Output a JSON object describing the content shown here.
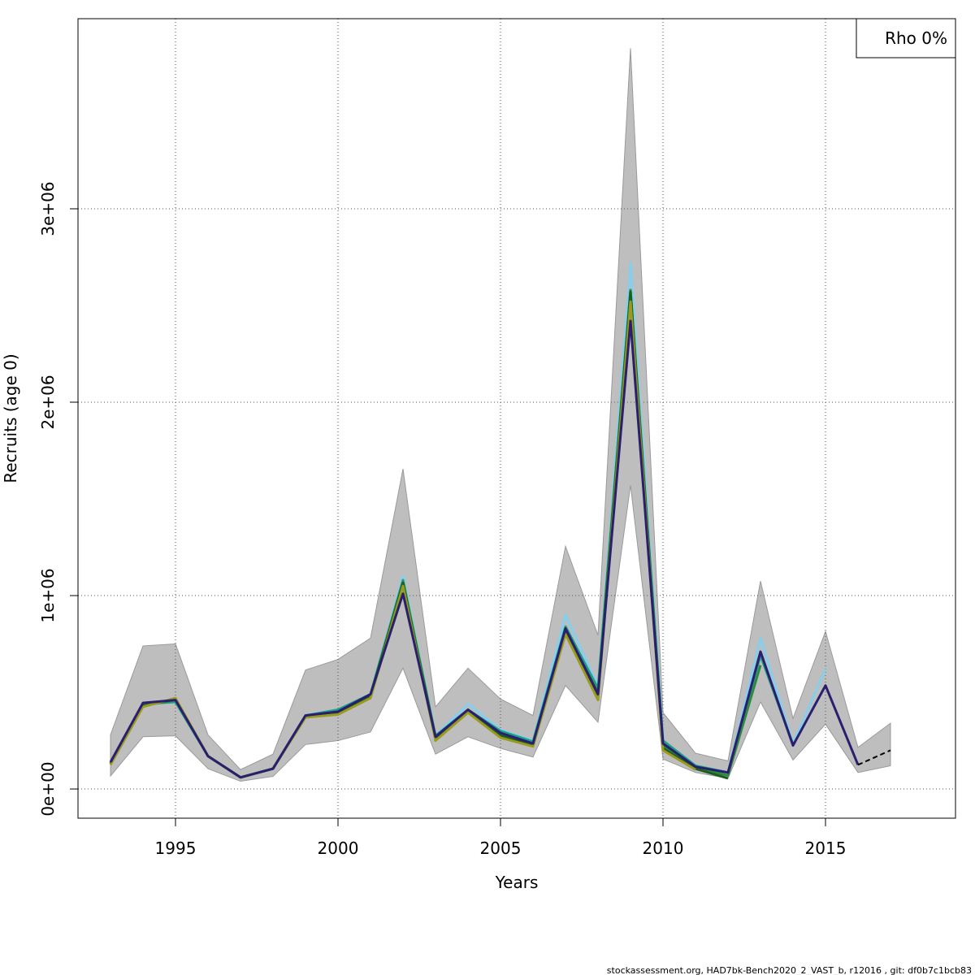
{
  "chart_data": {
    "type": "line",
    "xlabel": "Years",
    "ylabel": "Recruits (age 0)",
    "annotation": "Rho 0%",
    "footer": "stockassessment.org, HAD7bk-Bench2020_2_VAST_b, r12016 , git: df0b7c1bcb83",
    "x": [
      1993,
      1994,
      1995,
      1996,
      1997,
      1998,
      1999,
      2000,
      2001,
      2002,
      2003,
      2004,
      2005,
      2006,
      2007,
      2008,
      2009,
      2010,
      2011,
      2012,
      2013,
      2014,
      2015,
      2016,
      2017
    ],
    "xlim": [
      1992,
      2019
    ],
    "xticks": [
      1995,
      2000,
      2005,
      2010,
      2015
    ],
    "ylim": [
      -151000,
      3983000
    ],
    "yticks": [
      {
        "value": 0,
        "label": "0e+00"
      },
      {
        "value": 1000000,
        "label": "1e+06"
      },
      {
        "value": 2000000,
        "label": "2e+06"
      },
      {
        "value": 3000000,
        "label": "3e+06"
      }
    ],
    "grid": true,
    "band": {
      "color": "#bebebe",
      "upper": [
        280000,
        740000,
        750000,
        280000,
        100000,
        180000,
        615000,
        670000,
        780000,
        1655000,
        425000,
        625000,
        465000,
        380000,
        1255000,
        795000,
        3830000,
        395000,
        185000,
        145000,
        1075000,
        365000,
        815000,
        215000,
        340000
      ],
      "lower": [
        67000,
        270000,
        275000,
        105000,
        40000,
        65000,
        230000,
        250000,
        295000,
        625000,
        180000,
        270000,
        210000,
        165000,
        535000,
        345000,
        1570000,
        155000,
        85000,
        55000,
        450000,
        150000,
        335000,
        85000,
        120000
      ]
    },
    "series": [
      {
        "color": "#87ceeb",
        "values": [
          135000,
          440000,
          455000,
          170000,
          60000,
          105000,
          380000,
          410000,
          490000,
          1100000,
          275000,
          440000,
          305000,
          250000,
          900000,
          530000,
          2720000,
          250000,
          120000,
          85000,
          780000,
          235000,
          620000,
          null,
          null
        ]
      },
      {
        "color": "#1f9e89",
        "values": [
          135000,
          440000,
          450000,
          170000,
          60000,
          105000,
          380000,
          410000,
          490000,
          1080000,
          275000,
          410000,
          300000,
          245000,
          840000,
          520000,
          2580000,
          250000,
          120000,
          85000,
          690000,
          230000,
          null,
          null,
          null
        ]
      },
      {
        "color": "#2e8b3e",
        "values": [
          130000,
          430000,
          460000,
          170000,
          60000,
          105000,
          375000,
          395000,
          485000,
          1070000,
          270000,
          405000,
          285000,
          235000,
          820000,
          500000,
          2580000,
          220000,
          110000,
          70000,
          640000,
          null,
          null,
          null,
          null
        ]
      },
      {
        "color": "#1b5e20",
        "values": [
          130000,
          430000,
          465000,
          170000,
          60000,
          105000,
          375000,
          390000,
          480000,
          1065000,
          260000,
          405000,
          275000,
          230000,
          810000,
          470000,
          2570000,
          210000,
          105000,
          55000,
          null,
          null,
          null,
          null,
          null
        ]
      },
      {
        "color": "#9a9a1f",
        "values": [
          125000,
          425000,
          470000,
          170000,
          60000,
          105000,
          370000,
          385000,
          470000,
          1050000,
          250000,
          395000,
          265000,
          220000,
          800000,
          460000,
          2520000,
          200000,
          100000,
          null,
          null,
          null,
          null,
          null,
          null
        ]
      },
      {
        "color": "#2a1f6e",
        "values": [
          139000,
          445000,
          460000,
          170000,
          60000,
          105000,
          380000,
          400000,
          490000,
          1010000,
          270000,
          410000,
          290000,
          235000,
          830000,
          490000,
          2420000,
          235000,
          115000,
          85000,
          710000,
          225000,
          535000,
          125000,
          null
        ]
      },
      {
        "color": "#000000",
        "dashed": true,
        "values": [
          null,
          null,
          null,
          null,
          null,
          null,
          null,
          null,
          null,
          null,
          null,
          null,
          null,
          null,
          null,
          null,
          null,
          null,
          null,
          null,
          null,
          null,
          null,
          125000,
          200000
        ]
      }
    ]
  }
}
